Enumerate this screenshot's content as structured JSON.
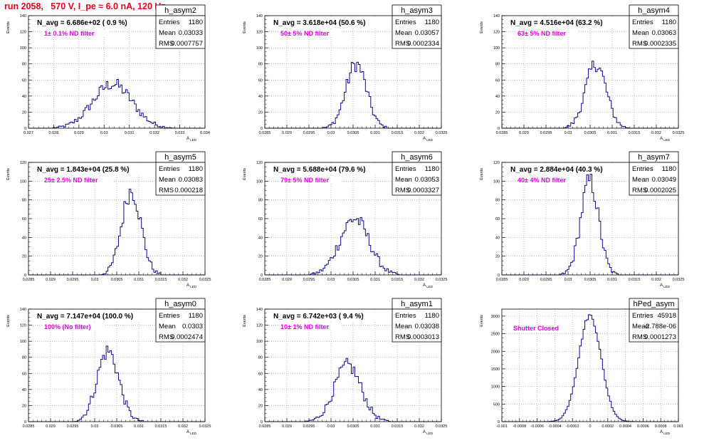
{
  "run_title": "run 2058,   570 V, I_pe ≈ 6.0 nA, 120 Hz",
  "colors": {
    "title": "#e8001c",
    "hist": "#0a0a8a",
    "filter_label": "#e000e0",
    "frame": "#000000"
  },
  "chart_data": [
    {
      "type": "bar",
      "name": "h_asym2",
      "xlabel": "A_LED",
      "ylabel": "Events",
      "xlim": [
        0.027,
        0.034
      ],
      "ylim": [
        0,
        140
      ],
      "xticks": [
        "0.027",
        "0.028",
        "0.029",
        "0.03",
        "0.031",
        "0.032",
        "0.033",
        "0.034"
      ],
      "yticks": [
        "0",
        "20",
        "40",
        "60",
        "80",
        "100",
        "120",
        "140"
      ],
      "stats": {
        "Entries": "1180",
        "Mean": "0.03033",
        "RMS": "0.0007757"
      },
      "navg_label": "N_avg = 6.686e+02 ( 0.9 %)",
      "filter_label": "1± 0.1% ND filter",
      "hist": {
        "mean": 0.03033,
        "rms": 0.0007757,
        "peak": 55
      }
    },
    {
      "type": "bar",
      "name": "h_asym3",
      "xlabel": "A_LED",
      "ylabel": "Events",
      "xlim": [
        0.0285,
        0.0325
      ],
      "ylim": [
        0,
        140
      ],
      "xticks": [
        "0.0285",
        "0.029",
        "0.0295",
        "0.03",
        "0.0305",
        "0.031",
        "0.0315",
        "0.032",
        "0.0325"
      ],
      "yticks": [
        "0",
        "20",
        "40",
        "60",
        "80",
        "100",
        "120",
        "140"
      ],
      "stats": {
        "Entries": "1180",
        "Mean": "0.03057",
        "RMS": "0.0002334"
      },
      "navg_label": "N_avg = 3.618e+04 (50.6 %)",
      "filter_label": "50± 5% ND filter",
      "hist": {
        "mean": 0.03057,
        "rms": 0.0002334,
        "peak": 80
      }
    },
    {
      "type": "bar",
      "name": "h_asym4",
      "xlabel": "A_LED",
      "ylabel": "Events",
      "xlim": [
        0.0285,
        0.0325
      ],
      "ylim": [
        0,
        140
      ],
      "xticks": [
        "0.0285",
        "0.029",
        "0.0295",
        "0.03",
        "0.0305",
        "0.031",
        "0.0315",
        "0.032",
        "0.0325"
      ],
      "yticks": [
        "0",
        "20",
        "40",
        "60",
        "80",
        "100",
        "120",
        "140"
      ],
      "stats": {
        "Entries": "1180",
        "Mean": "0.03063",
        "RMS": "0.0002335"
      },
      "navg_label": "N_avg = 4.516e+04 (63.2 %)",
      "filter_label": "63± 5% ND filter",
      "hist": {
        "mean": 0.03063,
        "rms": 0.0002335,
        "peak": 80
      }
    },
    {
      "type": "bar",
      "name": "h_asym5",
      "xlabel": "A_LED",
      "ylabel": "Events",
      "xlim": [
        0.0285,
        0.0325
      ],
      "ylim": [
        0,
        120
      ],
      "xticks": [
        "0.0285",
        "0.029",
        "0.0295",
        "0.03",
        "0.0305",
        "0.031",
        "0.0315",
        "0.032",
        "0.0325"
      ],
      "yticks": [
        "0",
        "20",
        "40",
        "60",
        "80",
        "100",
        "120"
      ],
      "stats": {
        "Entries": "1180",
        "Mean": "0.03083",
        "RMS": "0.000218"
      },
      "navg_label": "N_avg = 1.843e+04 (25.8 %)",
      "filter_label": "25± 2.5% ND filter",
      "hist": {
        "mean": 0.03083,
        "rms": 0.000218,
        "peak": 90
      }
    },
    {
      "type": "bar",
      "name": "h_asym6",
      "xlabel": "A_LED",
      "ylabel": "Events",
      "xlim": [
        0.0285,
        0.0325
      ],
      "ylim": [
        0,
        120
      ],
      "xticks": [
        "0.0285",
        "0.029",
        "0.0295",
        "0.03",
        "0.0305",
        "0.031",
        "0.0315",
        "0.032",
        "0.0325"
      ],
      "yticks": [
        "0",
        "20",
        "40",
        "60",
        "80",
        "100",
        "120"
      ],
      "stats": {
        "Entries": "1180",
        "Mean": "0.03053",
        "RMS": "0.0003327"
      },
      "navg_label": "N_avg = 5.688e+04 (79.6 %)",
      "filter_label": "79± 5% ND filter",
      "hist": {
        "mean": 0.03053,
        "rms": 0.0003327,
        "peak": 60
      }
    },
    {
      "type": "bar",
      "name": "h_asym7",
      "xlabel": "A_LED",
      "ylabel": "Events",
      "xlim": [
        0.0285,
        0.0325
      ],
      "ylim": [
        0,
        120
      ],
      "xticks": [
        "0.0285",
        "0.029",
        "0.0295",
        "0.03",
        "0.0305",
        "0.031",
        "0.0315",
        "0.032",
        "0.0325"
      ],
      "yticks": [
        "0",
        "20",
        "40",
        "60",
        "80",
        "100",
        "120"
      ],
      "stats": {
        "Entries": "1180",
        "Mean": "0.03049",
        "RMS": "0.0002025"
      },
      "navg_label": "N_avg = 2.884e+04 (40.3 %)",
      "filter_label": "40± 4% ND filter",
      "hist": {
        "mean": 0.03049,
        "rms": 0.0002025,
        "peak": 100
      }
    },
    {
      "type": "bar",
      "name": "h_asym0",
      "xlabel": "A_LED",
      "ylabel": "Events",
      "xlim": [
        0.0285,
        0.0325
      ],
      "ylim": [
        0,
        140
      ],
      "xticks": [
        "0.0285",
        "0.029",
        "0.0295",
        "0.03",
        "0.0305",
        "0.031",
        "0.0315",
        "0.032",
        "0.0325"
      ],
      "yticks": [
        "0",
        "20",
        "40",
        "60",
        "80",
        "100",
        "120",
        "140"
      ],
      "stats": {
        "Entries": "1180",
        "Mean": "0.0303",
        "RMS": "0.0002474"
      },
      "navg_label": "N_avg = 7.147e+04 (100.0 %)",
      "filter_label": "100% (No filter)",
      "hist": {
        "mean": 0.0303,
        "rms": 0.0002474,
        "peak": 88
      }
    },
    {
      "type": "bar",
      "name": "h_asym1",
      "xlabel": "A_LED",
      "ylabel": "Events",
      "xlim": [
        0.0285,
        0.0325
      ],
      "ylim": [
        0,
        140
      ],
      "xticks": [
        "0.0285",
        "0.029",
        "0.0295",
        "0.03",
        "0.0305",
        "0.031",
        "0.0315",
        "0.032",
        "0.0325"
      ],
      "yticks": [
        "0",
        "20",
        "40",
        "60",
        "80",
        "100",
        "120",
        "140"
      ],
      "stats": {
        "Entries": "1180",
        "Mean": "0.03038",
        "RMS": "0.0003013"
      },
      "navg_label": "N_avg = 6.742e+03 ( 9.4 %)",
      "filter_label": "10± 1% ND filter",
      "hist": {
        "mean": 0.03038,
        "rms": 0.0003013,
        "peak": 70
      }
    },
    {
      "type": "bar",
      "name": "hPed_asym",
      "xlabel": "A_LED",
      "ylabel": "Events",
      "xlim": [
        -0.001,
        0.001
      ],
      "ylim": [
        0,
        3200
      ],
      "xticks": [
        "-0.001",
        "-0.0008",
        "-0.0006",
        "-0.0004",
        "-0.0002",
        "0",
        "0.0002",
        "0.0004",
        "0.0006",
        "0.0008",
        "0.001"
      ],
      "yticks": [
        "0",
        "500",
        "1000",
        "1500",
        "2000",
        "2500",
        "3000"
      ],
      "stats": {
        "Entries": "45918",
        "Mean": "-2.788e-06",
        "RMS": "0.0001273"
      },
      "navg_label": "",
      "filter_label": "Shutter Closed",
      "hist": {
        "mean": -2.788e-06,
        "rms": 0.0001273,
        "peak": 3020
      }
    }
  ]
}
